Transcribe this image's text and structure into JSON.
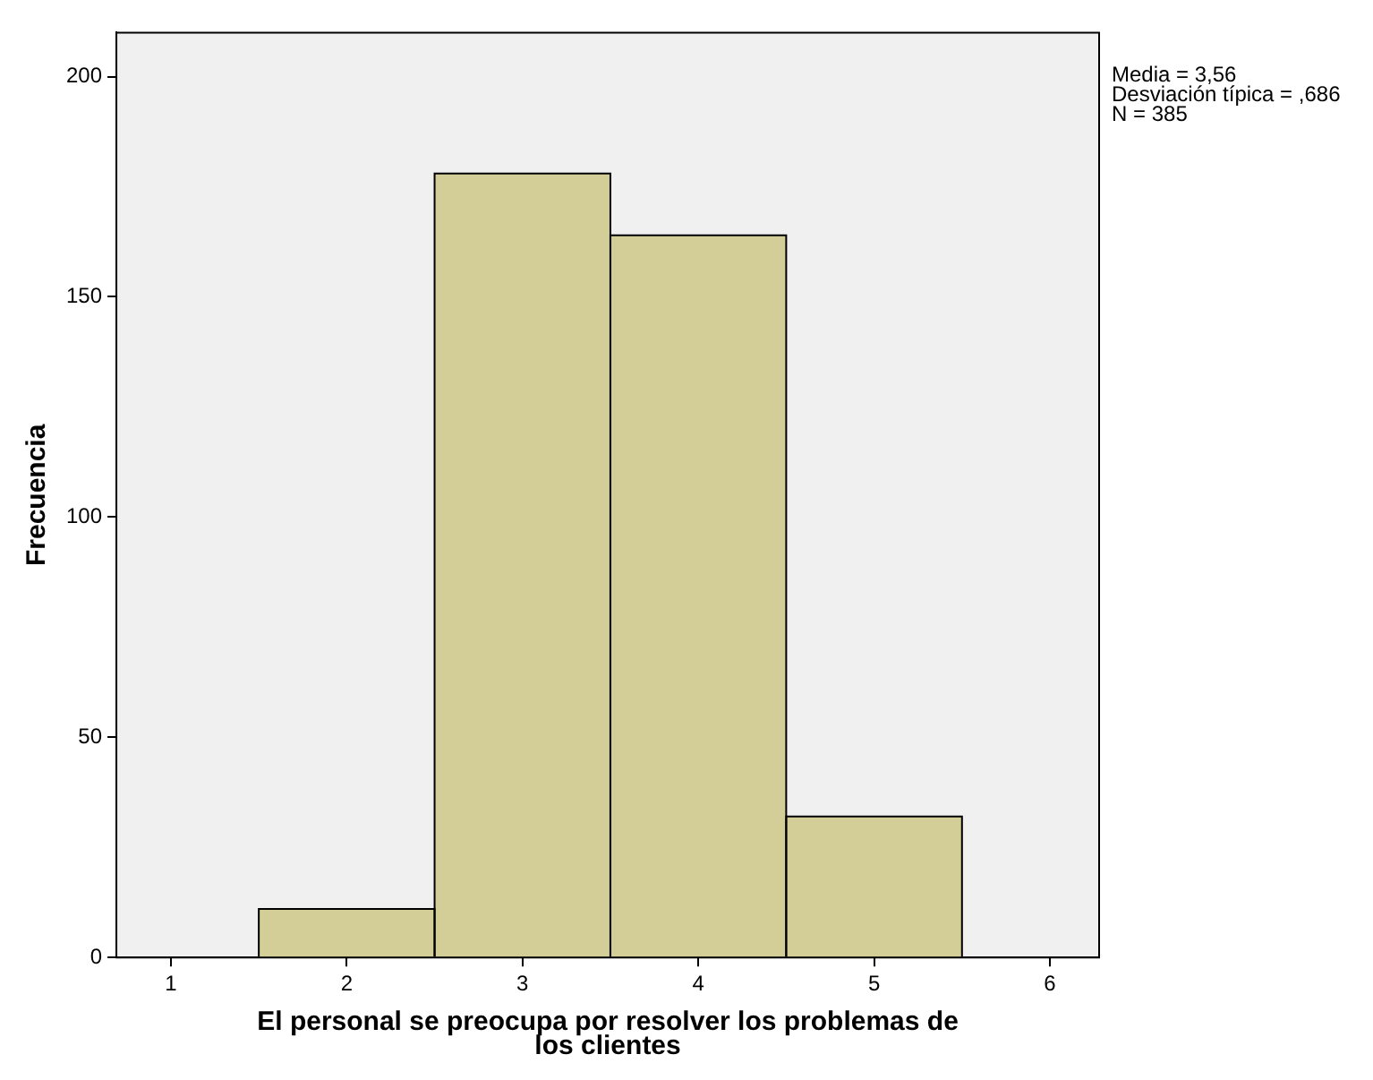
{
  "chart_data": {
    "type": "histogram",
    "xlabel": "El personal se preocupa por resolver los problemas de los clientes",
    "ylabel": "Frecuencia",
    "bins": [
      1.5,
      2.5,
      3.5,
      4.5,
      5.5
    ],
    "values": [
      11,
      178,
      164,
      32
    ],
    "color": "#d3ce97",
    "xlim": [
      0.69,
      6.28
    ],
    "ylim": [
      0,
      210
    ],
    "xticks": [
      1,
      2,
      3,
      4,
      5,
      6
    ],
    "yticks": [
      0,
      50,
      100,
      150,
      200
    ],
    "grid": false,
    "legend": false,
    "annotations": [
      "Media = 3,56",
      "Desviación típica = ,686",
      "N = 385"
    ]
  }
}
